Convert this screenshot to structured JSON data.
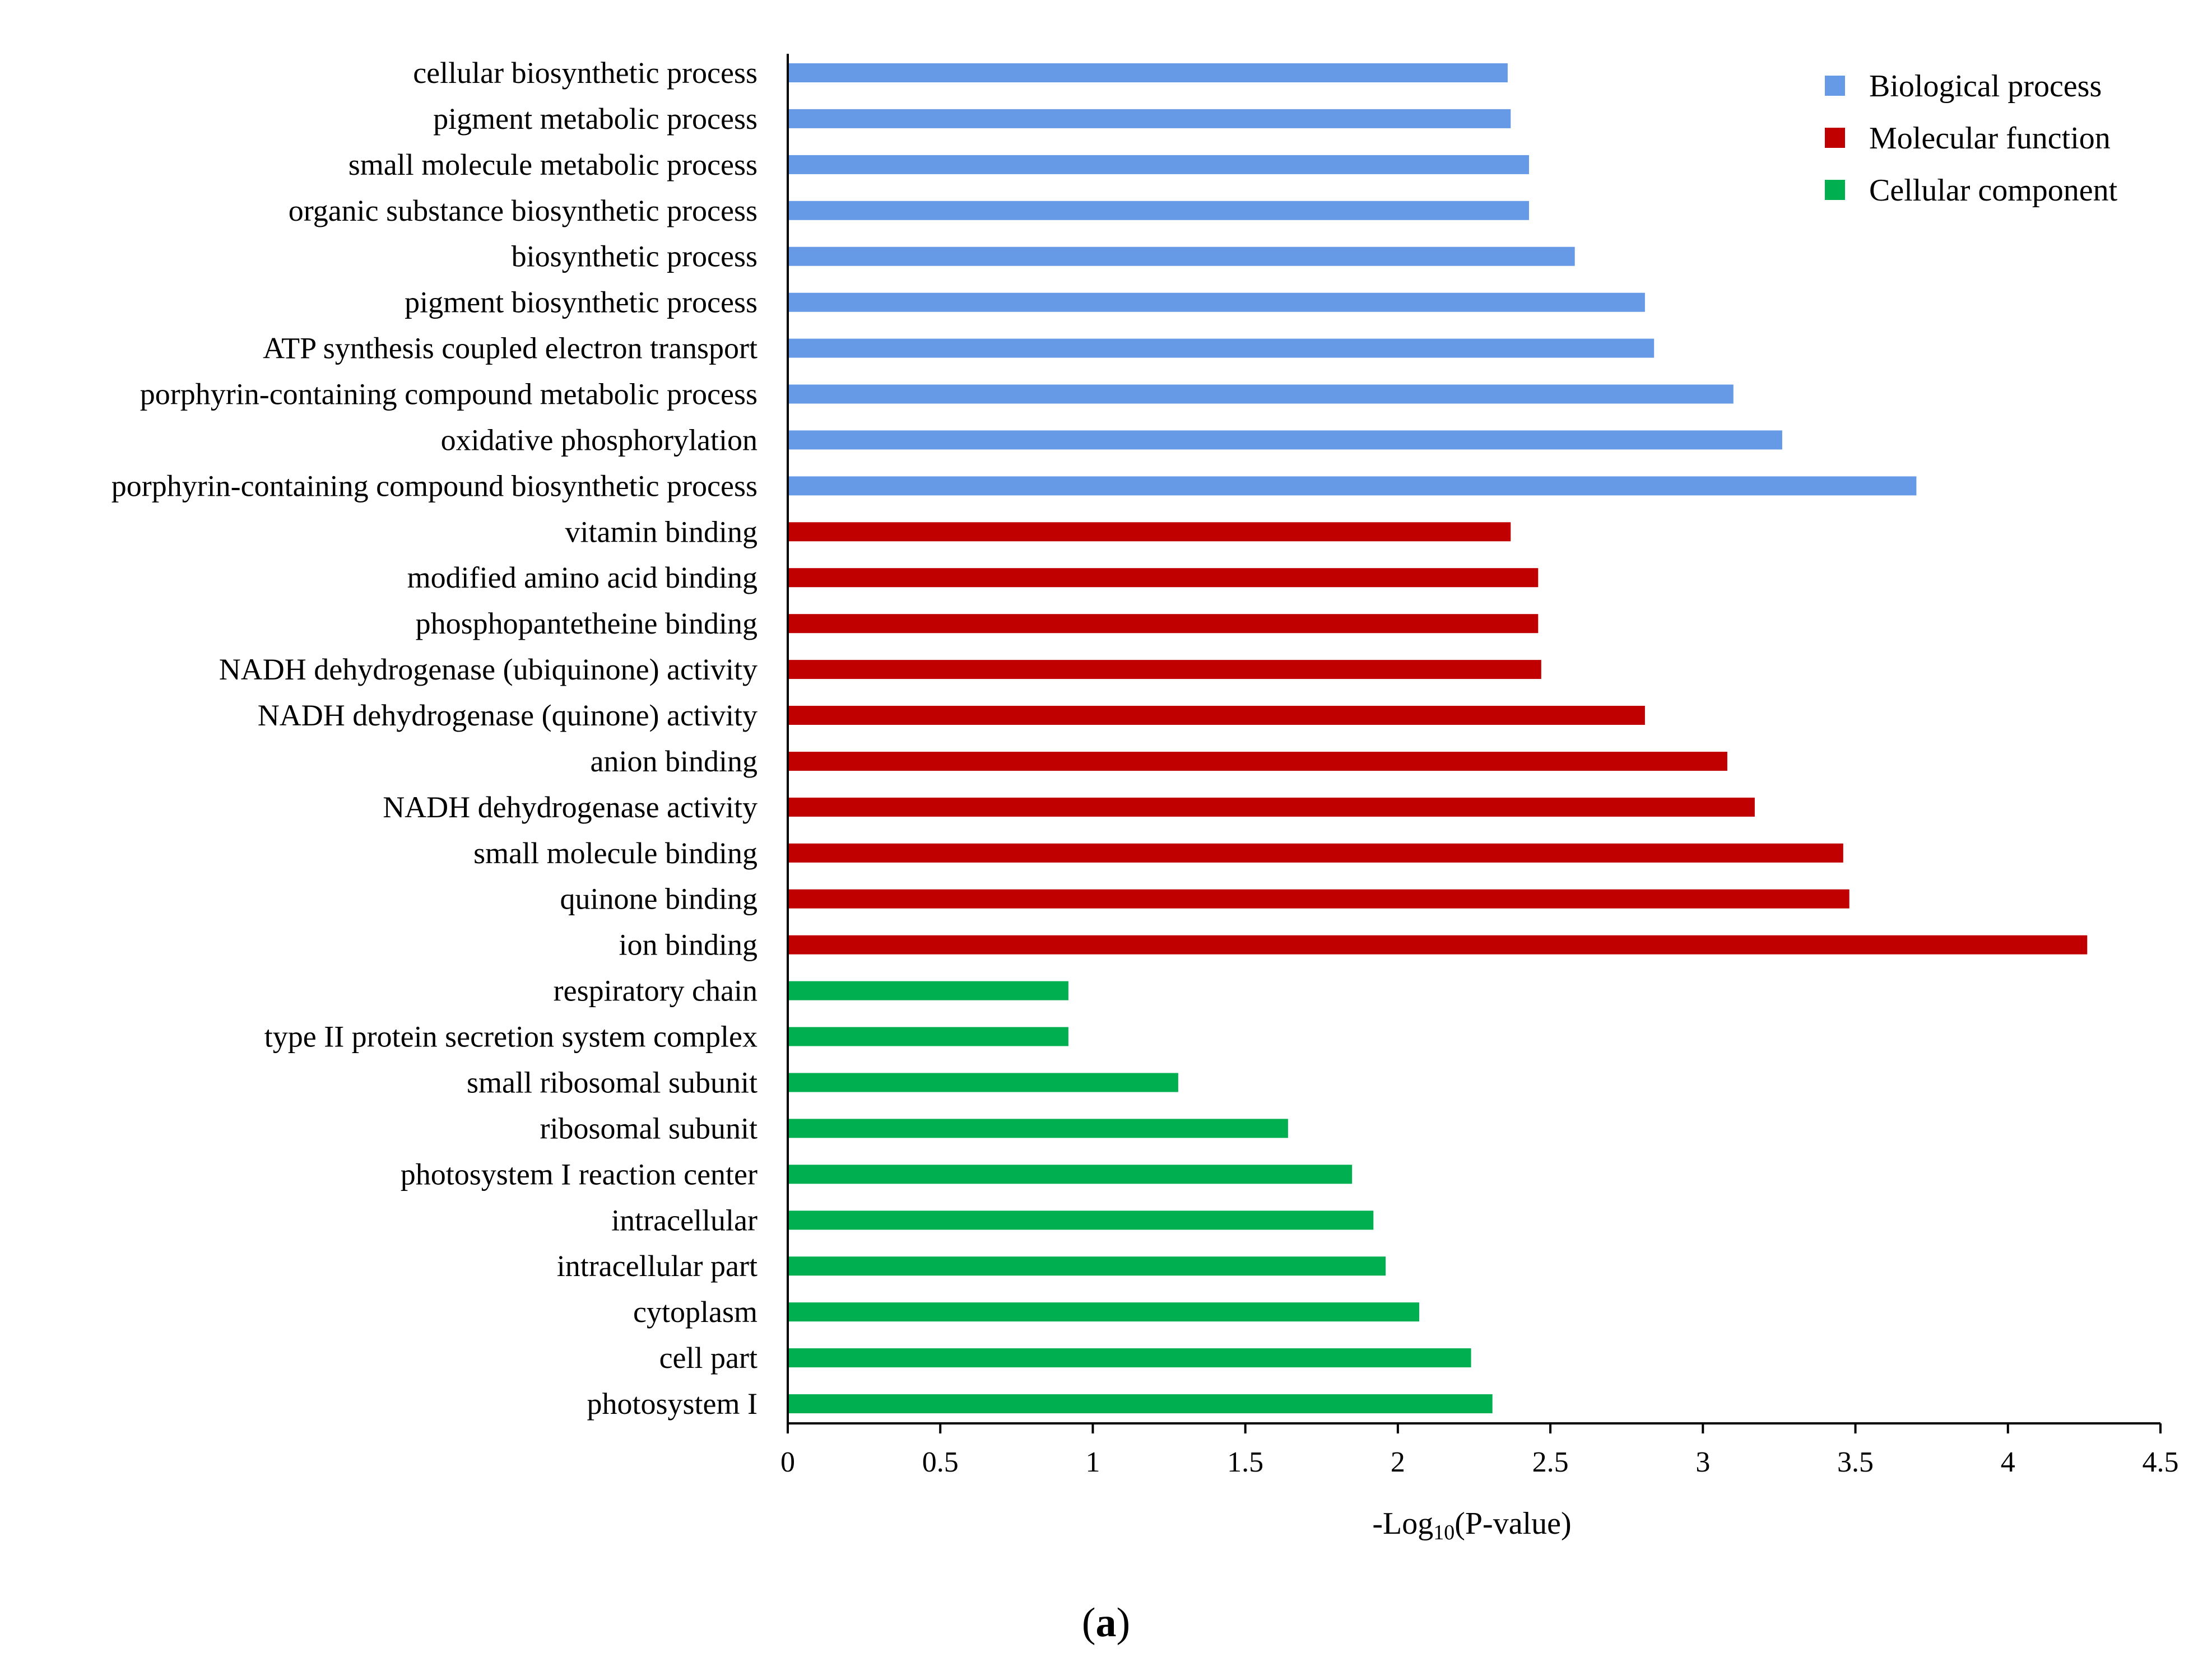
{
  "chart_data": {
    "type": "bar",
    "orientation": "horizontal",
    "xlabel": "-Log10(P-value)",
    "xlabel_prefix": "-Log",
    "xlabel_sub": "10",
    "xlabel_suffix": "(P-value)",
    "xlim": [
      0,
      4.5
    ],
    "xticks": [
      "0",
      "0.5",
      "1",
      "1.5",
      "2",
      "2.5",
      "3",
      "3.5",
      "4",
      "4.5"
    ],
    "xtick_values": [
      0,
      0.5,
      1,
      1.5,
      2,
      2.5,
      3,
      3.5,
      4,
      4.5
    ],
    "legend_position": "top-right",
    "grid": false,
    "series": [
      {
        "name": "Biological process",
        "color": "#6699e6",
        "categories": [
          "cellular biosynthetic process",
          "pigment metabolic process",
          "small molecule metabolic process",
          "organic substance biosynthetic process",
          "biosynthetic process",
          "pigment biosynthetic process",
          "ATP synthesis coupled electron transport",
          "porphyrin-containing compound metabolic process",
          "oxidative phosphorylation",
          "porphyrin-containing compound biosynthetic process"
        ],
        "values": [
          2.36,
          2.37,
          2.43,
          2.43,
          2.58,
          2.81,
          2.84,
          3.1,
          3.26,
          3.7
        ]
      },
      {
        "name": "Molecular  function",
        "color": "#c00000",
        "categories": [
          "vitamin binding",
          "modified amino acid binding",
          "phosphopantetheine binding",
          "NADH dehydrogenase (ubiquinone) activity",
          "NADH dehydrogenase (quinone) activity",
          "anion binding",
          "NADH dehydrogenase activity",
          "small molecule binding",
          "quinone binding",
          "ion binding"
        ],
        "values": [
          2.37,
          2.46,
          2.46,
          2.47,
          2.81,
          3.08,
          3.17,
          3.46,
          3.48,
          4.26
        ]
      },
      {
        "name": "Cellular component",
        "color": "#00b050",
        "categories": [
          "respiratory chain",
          "type II protein secretion system complex",
          "small ribosomal subunit",
          "ribosomal subunit",
          "photosystem I reaction center",
          "intracellular",
          "intracellular part",
          "cytoplasm",
          "cell part",
          "photosystem I"
        ],
        "values": [
          0.92,
          0.92,
          1.28,
          1.64,
          1.85,
          1.92,
          1.96,
          2.07,
          2.24,
          2.31
        ]
      }
    ]
  },
  "panel_label": "(a)",
  "panel_label_open": "(",
  "panel_label_letter": "a",
  "panel_label_close": ")"
}
